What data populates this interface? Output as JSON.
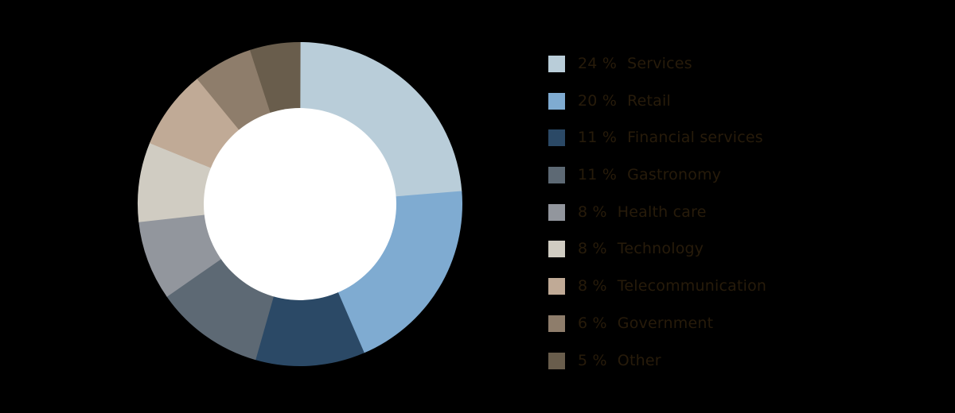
{
  "background_color": "#000000",
  "chart_data": {
    "type": "pie",
    "subtype": "donut",
    "title": "",
    "legend_position": "right",
    "direction": "clockwise",
    "start_angle_deg": 0,
    "inner_radius_ratio": 0.59,
    "hole_color": "#ffffff",
    "legend_text_color": "#271b0a",
    "value_suffix": " %",
    "categories": [
      "Services",
      "Retail",
      "Financial services",
      "Gastronomy",
      "Health care",
      "Technology",
      "Telecommunication",
      "Government",
      "Other"
    ],
    "values": [
      24,
      20,
      11,
      11,
      8,
      8,
      8,
      6,
      5
    ],
    "display_values": [
      "24 %",
      "20 %",
      "11 %",
      "11 %",
      "8 %",
      "8 %",
      "8 %",
      "6 %",
      "5 %"
    ],
    "colors": [
      "#b9cdd9",
      "#7fabd1",
      "#2b4966",
      "#5d6974",
      "#92969d",
      "#d0ccc2",
      "#c0aa96",
      "#8e7d6b",
      "#695d4c"
    ]
  }
}
